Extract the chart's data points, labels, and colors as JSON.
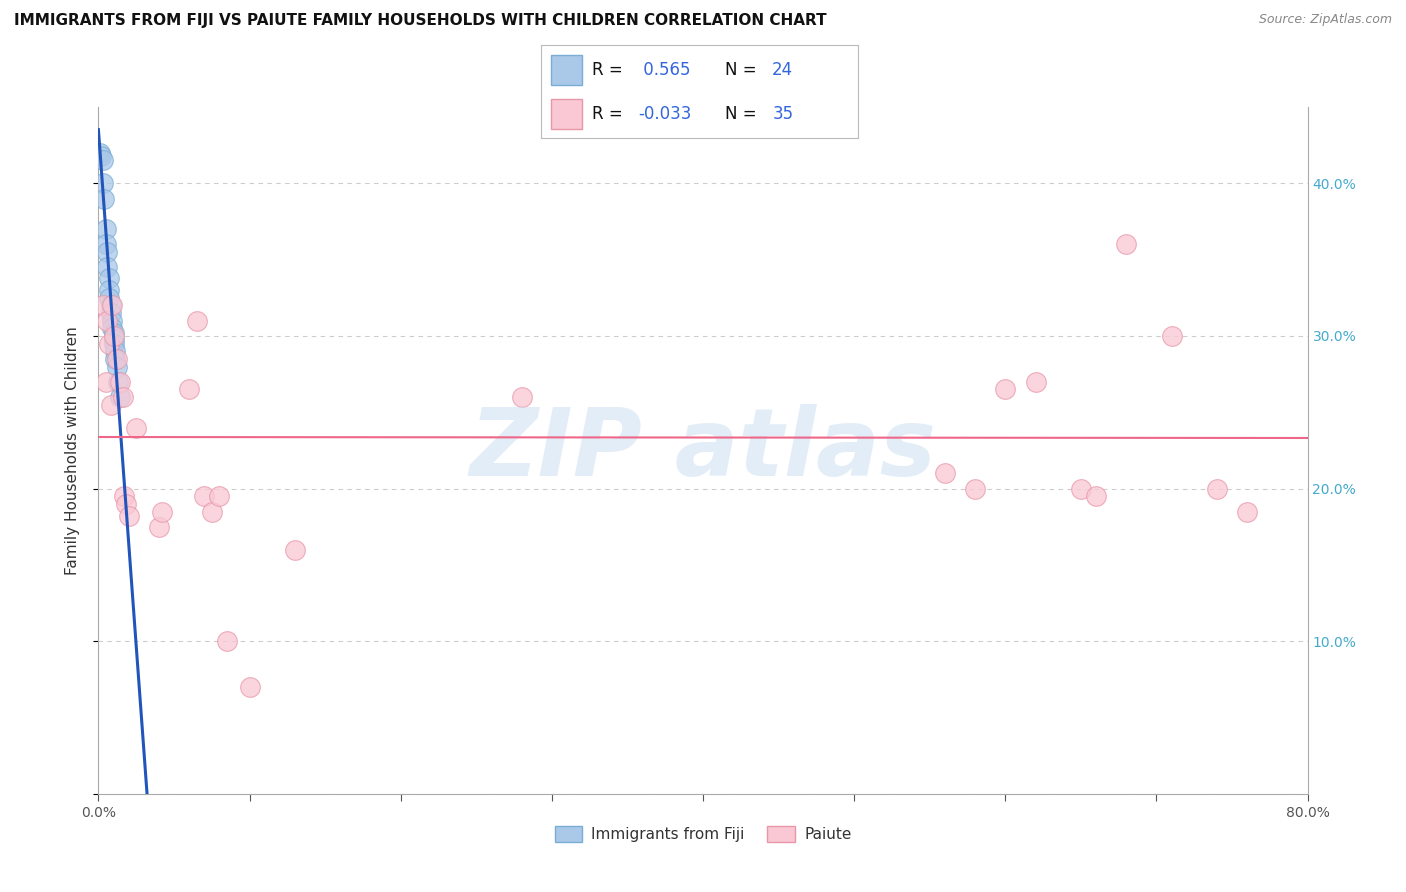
{
  "title": "IMMIGRANTS FROM FIJI VS PAIUTE FAMILY HOUSEHOLDS WITH CHILDREN CORRELATION CHART",
  "source": "Source: ZipAtlas.com",
  "ylabel": "Family Households with Children",
  "xlim": [
    0.0,
    0.8
  ],
  "ylim": [
    0.0,
    0.45
  ],
  "xticks": [
    0.0,
    0.1,
    0.2,
    0.3,
    0.4,
    0.5,
    0.6,
    0.7,
    0.8
  ],
  "yticks": [
    0.0,
    0.1,
    0.2,
    0.3,
    0.4
  ],
  "fiji_R": 0.565,
  "fiji_N": 24,
  "paiute_R": -0.033,
  "paiute_N": 35,
  "background_color": "#ffffff",
  "grid_color": "#cccccc",
  "fiji_color": "#aac8e8",
  "fiji_edge_color": "#7aadd4",
  "paiute_color": "#f9c8d4",
  "paiute_edge_color": "#e896a8",
  "fiji_line_color": "#2255bb",
  "paiute_line_color": "#ee6688",
  "watermark_color": "#c8ddf0",
  "right_tick_color": "#44aacc",
  "fiji_points": [
    [
      0.001,
      0.42
    ],
    [
      0.002,
      0.418
    ],
    [
      0.003,
      0.415
    ],
    [
      0.003,
      0.4
    ],
    [
      0.004,
      0.39
    ],
    [
      0.005,
      0.37
    ],
    [
      0.005,
      0.36
    ],
    [
      0.006,
      0.355
    ],
    [
      0.006,
      0.345
    ],
    [
      0.007,
      0.338
    ],
    [
      0.007,
      0.33
    ],
    [
      0.007,
      0.325
    ],
    [
      0.008,
      0.32
    ],
    [
      0.008,
      0.315
    ],
    [
      0.009,
      0.31
    ],
    [
      0.009,
      0.305
    ],
    [
      0.01,
      0.302
    ],
    [
      0.01,
      0.298
    ],
    [
      0.01,
      0.295
    ],
    [
      0.011,
      0.29
    ],
    [
      0.011,
      0.285
    ],
    [
      0.012,
      0.28
    ],
    [
      0.013,
      0.27
    ],
    [
      0.014,
      0.26
    ]
  ],
  "paiute_points": [
    [
      0.003,
      0.32
    ],
    [
      0.005,
      0.27
    ],
    [
      0.006,
      0.31
    ],
    [
      0.007,
      0.295
    ],
    [
      0.008,
      0.255
    ],
    [
      0.009,
      0.32
    ],
    [
      0.01,
      0.3
    ],
    [
      0.012,
      0.285
    ],
    [
      0.014,
      0.27
    ],
    [
      0.016,
      0.26
    ],
    [
      0.017,
      0.195
    ],
    [
      0.018,
      0.19
    ],
    [
      0.02,
      0.182
    ],
    [
      0.025,
      0.24
    ],
    [
      0.04,
      0.175
    ],
    [
      0.042,
      0.185
    ],
    [
      0.06,
      0.265
    ],
    [
      0.065,
      0.31
    ],
    [
      0.07,
      0.195
    ],
    [
      0.075,
      0.185
    ],
    [
      0.08,
      0.195
    ],
    [
      0.085,
      0.1
    ],
    [
      0.1,
      0.07
    ],
    [
      0.13,
      0.16
    ],
    [
      0.28,
      0.26
    ],
    [
      0.56,
      0.21
    ],
    [
      0.58,
      0.2
    ],
    [
      0.6,
      0.265
    ],
    [
      0.62,
      0.27
    ],
    [
      0.65,
      0.2
    ],
    [
      0.66,
      0.195
    ],
    [
      0.68,
      0.36
    ],
    [
      0.71,
      0.3
    ],
    [
      0.74,
      0.2
    ],
    [
      0.76,
      0.185
    ]
  ]
}
